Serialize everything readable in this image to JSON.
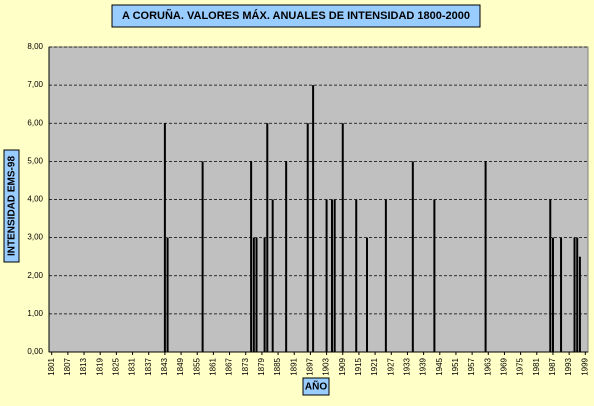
{
  "chart_data": {
    "type": "bar",
    "title": "A CORUÑA. VALORES MÁX. ANUALES DE INTENSIDAD 1800-2000",
    "y_label": "INTENSIDAD EMS-98",
    "x_label": "AÑO",
    "color": "#000000",
    "grid": true,
    "x": [
      1843,
      1844,
      1857,
      1875,
      1876,
      1877,
      1880,
      1881,
      1883,
      1888,
      1896,
      1898,
      1903,
      1905,
      1906,
      1909,
      1914,
      1918,
      1925,
      1935,
      1943,
      1962,
      1986,
      1987,
      1990,
      1995,
      1996,
      1997
    ],
    "values": [
      6,
      3,
      5,
      5,
      3,
      3,
      3,
      6,
      4,
      5,
      6,
      7,
      4,
      4,
      4,
      6,
      4,
      3,
      4,
      5,
      4,
      5,
      4,
      3,
      3,
      3,
      3,
      2.5
    ],
    "xlim": [
      1800,
      2000
    ],
    "xticks": [
      1801,
      1807,
      1813,
      1819,
      1825,
      1831,
      1837,
      1843,
      1849,
      1855,
      1861,
      1867,
      1873,
      1879,
      1885,
      1891,
      1897,
      1903,
      1909,
      1915,
      1921,
      1927,
      1933,
      1939,
      1945,
      1951,
      1957,
      1963,
      1969,
      1975,
      1981,
      1987,
      1993,
      1999
    ],
    "ylim": [
      0,
      8
    ],
    "yticks": [
      {
        "value": 0,
        "label": "0,00"
      },
      {
        "value": 1,
        "label": "1,00"
      },
      {
        "value": 2,
        "label": "2,00"
      },
      {
        "value": 3,
        "label": "3,00"
      },
      {
        "value": 4,
        "label": "4,00"
      },
      {
        "value": 5,
        "label": "5,00"
      },
      {
        "value": 6,
        "label": "6,00"
      },
      {
        "value": 7,
        "label": "7,00"
      },
      {
        "value": 8,
        "label": "8,00"
      }
    ]
  }
}
